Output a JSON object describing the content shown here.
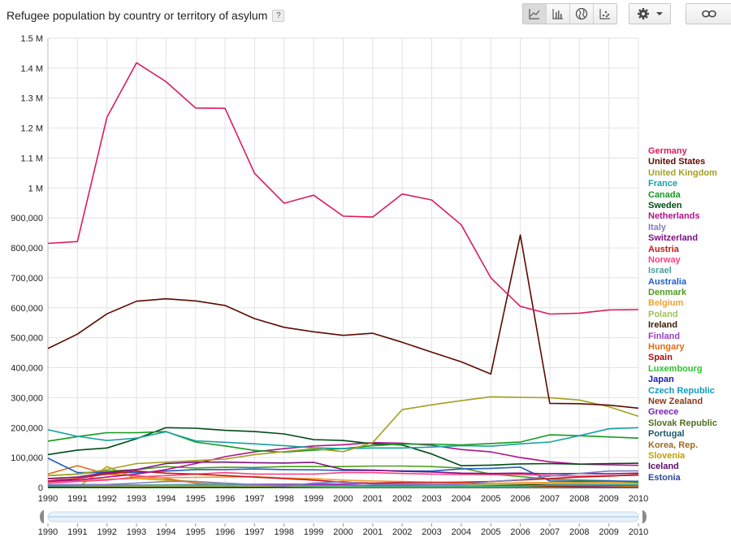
{
  "title": "Refugee population by country or territory of asylum",
  "help_label": "?",
  "toolbar": {
    "view_buttons": [
      "line-chart-icon",
      "bar-chart-icon",
      "globe-map-icon",
      "scatter-chart-icon"
    ],
    "active_view": "line-chart-icon",
    "settings_icon": "gear-icon",
    "link_icon": "link-icon"
  },
  "chart_data": {
    "type": "line",
    "title": "Refugee population by country or territory of asylum",
    "xlabel": "",
    "ylabel": "",
    "x": [
      1990,
      1991,
      1992,
      1993,
      1994,
      1995,
      1996,
      1997,
      1998,
      1999,
      2000,
      2001,
      2002,
      2003,
      2004,
      2005,
      2006,
      2007,
      2008,
      2009,
      2010
    ],
    "xlim": [
      1990,
      2010
    ],
    "ylim": [
      0,
      1500000
    ],
    "y_ticks": [
      0,
      100000,
      200000,
      300000,
      400000,
      500000,
      600000,
      700000,
      800000,
      900000,
      1000000,
      1100000,
      1200000,
      1300000,
      1400000,
      1500000
    ],
    "y_tick_labels": [
      "0",
      "100,000",
      "200,000",
      "300,000",
      "400,000",
      "500,000",
      "600,000",
      "700,000",
      "800,000",
      "900,000",
      "1 M",
      "1.1 M",
      "1.2 M",
      "1.3 M",
      "1.4 M",
      "1.5 M"
    ],
    "grid": true,
    "legend_position": "right",
    "series": [
      {
        "name": "Germany",
        "color": "#dc1b5e",
        "values": [
          815000,
          821000,
          1236000,
          1418000,
          1355000,
          1267000,
          1266000,
          1049000,
          949000,
          976000,
          906000,
          903000,
          980000,
          960000,
          877000,
          700000,
          605000,
          579000,
          582000,
          593000,
          594000
        ]
      },
      {
        "name": "United States",
        "color": "#5c0a00",
        "values": [
          464000,
          512000,
          580000,
          622000,
          630000,
          623000,
          608000,
          564000,
          535000,
          520000,
          508000,
          515000,
          485000,
          452000,
          420000,
          379000,
          843000,
          281000,
          280000,
          275000,
          265000
        ]
      },
      {
        "name": "United Kingdom",
        "color": "#a4a020",
        "values": [
          40000,
          45000,
          60000,
          80000,
          85000,
          90000,
          95000,
          110000,
          120000,
          130000,
          120000,
          150000,
          260000,
          276000,
          290000,
          303000,
          301000,
          300000,
          292000,
          270000,
          238000
        ]
      },
      {
        "name": "France",
        "color": "#17a2a2",
        "values": [
          193000,
          171000,
          157000,
          165000,
          186000,
          156000,
          151000,
          146000,
          140000,
          133000,
          130000,
          132000,
          132000,
          135000,
          140000,
          138000,
          146000,
          152000,
          173000,
          196000,
          200000
        ]
      },
      {
        "name": "Canada",
        "color": "#129a1e",
        "values": [
          155000,
          170000,
          183000,
          183000,
          187000,
          152000,
          139000,
          124000,
          118000,
          125000,
          130000,
          140000,
          145000,
          145000,
          142000,
          147000,
          152000,
          176000,
          173000,
          169000,
          165000
        ]
      },
      {
        "name": "Sweden",
        "color": "#004d16",
        "values": [
          110000,
          125000,
          132000,
          163000,
          200000,
          198000,
          191000,
          187000,
          179000,
          160000,
          157000,
          146000,
          142000,
          112000,
          73000,
          75000,
          79000,
          80000,
          78000,
          80000,
          81000
        ]
      },
      {
        "name": "Netherlands",
        "color": "#b0138a",
        "values": [
          20000,
          25000,
          35000,
          45000,
          60000,
          80000,
          103000,
          119000,
          130000,
          139000,
          143000,
          150000,
          148000,
          141000,
          127000,
          119000,
          100000,
          86000,
          78000,
          76000,
          74000
        ]
      },
      {
        "name": "Italy",
        "color": "#7e7ebf",
        "values": [
          10000,
          10000,
          10000,
          15000,
          20000,
          20000,
          15000,
          10000,
          5000,
          15000,
          20000,
          10000,
          10000,
          10000,
          10000,
          20000,
          26000,
          38000,
          47000,
          55000,
          56000
        ]
      },
      {
        "name": "Switzerland",
        "color": "#7b1180",
        "values": [
          30000,
          35000,
          50000,
          60000,
          80000,
          85000,
          85000,
          83000,
          82000,
          84000,
          60000,
          58000,
          54000,
          52000,
          48000,
          47000,
          48000,
          46000,
          47000,
          46000,
          48000
        ]
      },
      {
        "name": "Austria",
        "color": "#c81717",
        "values": [
          22000,
          30000,
          45000,
          55000,
          48000,
          45000,
          40000,
          35000,
          30000,
          25000,
          18000,
          15000,
          17000,
          17000,
          18000,
          20000,
          25000,
          30000,
          35000,
          38000,
          43000
        ]
      },
      {
        "name": "Norway",
        "color": "#ff4081",
        "values": [
          15000,
          20000,
          25000,
          35000,
          40000,
          45000,
          50000,
          45000,
          45000,
          45000,
          50000,
          50000,
          47000,
          45000,
          44000,
          43000,
          44000,
          40000,
          38000,
          40000,
          41000
        ]
      },
      {
        "name": "Israel",
        "color": "#4aa09a",
        "values": [
          5000,
          6000,
          7000,
          8000,
          9000,
          10000,
          10000,
          8000,
          7000,
          6000,
          6000,
          5000,
          5000,
          5000,
          5000,
          5000,
          5000,
          8000,
          9000,
          10000,
          10000
        ]
      },
      {
        "name": "Australia",
        "color": "#1f5fc4",
        "values": [
          98000,
          50000,
          50000,
          50000,
          55000,
          60000,
          60000,
          62000,
          60000,
          59000,
          57000,
          57000,
          56000,
          55000,
          62000,
          64000,
          68000,
          22000,
          21000,
          22000,
          21000
        ]
      },
      {
        "name": "Denmark",
        "color": "#4e9c1f",
        "values": [
          40000,
          45000,
          55000,
          60000,
          70000,
          65000,
          68000,
          67000,
          70000,
          70000,
          70000,
          72000,
          72000,
          70000,
          65000,
          45000,
          37000,
          28000,
          25000,
          23000,
          17000
        ]
      },
      {
        "name": "Belgium",
        "color": "#f0a030",
        "values": [
          30000,
          25000,
          28000,
          30000,
          33000,
          34000,
          35000,
          36000,
          32000,
          30000,
          25000,
          22000,
          20000,
          18000,
          15000,
          14000,
          16000,
          17000,
          18000,
          18000,
          17000
        ]
      },
      {
        "name": "Poland",
        "color": "#a0c060",
        "values": [
          5000,
          5000,
          5000,
          5000,
          5000,
          5000,
          5000,
          5000,
          5000,
          5000,
          5000,
          5000,
          5000,
          6000,
          8000,
          10000,
          12000,
          14000,
          16000,
          15000,
          15000
        ]
      },
      {
        "name": "Ireland",
        "color": "#3a1800",
        "values": [
          2000,
          2000,
          2000,
          2000,
          2000,
          2000,
          2000,
          2000,
          3000,
          4000,
          5000,
          6000,
          7000,
          8000,
          9000,
          9000,
          9000,
          9000,
          10000,
          10000,
          10000
        ]
      },
      {
        "name": "Finland",
        "color": "#9a40c0",
        "values": [
          3000,
          4000,
          6000,
          8000,
          9000,
          10000,
          10000,
          11000,
          11000,
          12000,
          12000,
          13000,
          12000,
          11000,
          11000,
          11000,
          11000,
          8000,
          7000,
          6000,
          9000
        ]
      },
      {
        "name": "Hungary",
        "color": "#e06a10",
        "values": [
          45000,
          73000,
          45000,
          40000,
          30000,
          15000,
          5000,
          5000,
          5000,
          5000,
          5000,
          5000,
          5000,
          5000,
          5000,
          5000,
          5000,
          8000,
          8000,
          5000,
          5000
        ]
      },
      {
        "name": "Spain",
        "color": "#a01010",
        "values": [
          5000,
          5000,
          6000,
          6000,
          6000,
          6000,
          6000,
          6000,
          6000,
          6000,
          6000,
          6000,
          6000,
          5000,
          5000,
          5000,
          5000,
          5000,
          4000,
          4000,
          4000
        ]
      },
      {
        "name": "Luxembourg",
        "color": "#30c030",
        "values": [
          500,
          500,
          500,
          500,
          500,
          500,
          500,
          500,
          1000,
          1500,
          1500,
          1500,
          1500,
          1500,
          1500,
          1500,
          2000,
          2000,
          3000,
          3000,
          3000
        ]
      },
      {
        "name": "Japan",
        "color": "#1a1ab0",
        "values": [
          6000,
          6000,
          6000,
          6000,
          6000,
          6000,
          6000,
          6000,
          5000,
          5000,
          4000,
          4000,
          3000,
          2000,
          2000,
          2000,
          2000,
          2000,
          2000,
          2000,
          2500
        ]
      },
      {
        "name": "Czech Republic",
        "color": "#109ac0",
        "values": [
          1000,
          1000,
          2000,
          2000,
          2000,
          2000,
          2000,
          2000,
          2000,
          2000,
          2000,
          2000,
          2000,
          2000,
          2000,
          2000,
          2000,
          2000,
          2000,
          2000,
          2000
        ]
      },
      {
        "name": "New Zealand",
        "color": "#8a3a1a",
        "values": [
          3000,
          3000,
          3000,
          3000,
          3000,
          3000,
          3000,
          3000,
          3000,
          3000,
          3000,
          3000,
          3000,
          3000,
          3000,
          3000,
          3000,
          3000,
          3000,
          3000,
          3000
        ]
      },
      {
        "name": "Greece",
        "color": "#7a20c0",
        "values": [
          8000,
          8000,
          8000,
          8000,
          8000,
          8000,
          8000,
          8000,
          8000,
          8000,
          8000,
          6000,
          5000,
          4000,
          3000,
          2000,
          2000,
          2000,
          2000,
          2000,
          2000
        ]
      },
      {
        "name": "Slovak Republic",
        "color": "#507020",
        "values": [
          500,
          500,
          500,
          500,
          500,
          500,
          500,
          500,
          500,
          500,
          500,
          500,
          500,
          500,
          500,
          500,
          500,
          500,
          500,
          500,
          500
        ]
      },
      {
        "name": "Portugal",
        "color": "#1a5a6a",
        "values": [
          500,
          500,
          500,
          500,
          500,
          500,
          500,
          500,
          500,
          500,
          500,
          500,
          500,
          500,
          500,
          500,
          500,
          500,
          500,
          500,
          500
        ]
      },
      {
        "name": "Korea, Rep.",
        "color": "#a06a20",
        "values": [
          0,
          0,
          0,
          0,
          0,
          0,
          0,
          0,
          0,
          0,
          0,
          0,
          0,
          0,
          0,
          0,
          0,
          0,
          500,
          1000,
          1500
        ]
      },
      {
        "name": "Slovenia",
        "color": "#c0a000",
        "values": [
          0,
          0,
          70000,
          30000,
          25000,
          20000,
          10000,
          8000,
          4000,
          3000,
          2000,
          1000,
          1000,
          500,
          500,
          500,
          500,
          500,
          500,
          500,
          500
        ]
      },
      {
        "name": "Iceland",
        "color": "#5a0a6a",
        "values": [
          0,
          0,
          0,
          0,
          0,
          0,
          0,
          0,
          0,
          0,
          0,
          0,
          0,
          0,
          0,
          0,
          0,
          0,
          0,
          0,
          0
        ]
      },
      {
        "name": "Estonia",
        "color": "#2a4a9a",
        "values": [
          0,
          0,
          0,
          0,
          0,
          0,
          0,
          0,
          0,
          0,
          0,
          0,
          0,
          0,
          0,
          0,
          0,
          0,
          0,
          0,
          0
        ]
      }
    ]
  },
  "slider": {
    "range": [
      1990,
      2010
    ],
    "tick_labels": [
      "1990",
      "1991",
      "1992",
      "1993",
      "1994",
      "1995",
      "1996",
      "1997",
      "1998",
      "1999",
      "2000",
      "2001",
      "2002",
      "2003",
      "2004",
      "2005",
      "2006",
      "2007",
      "2008",
      "2009",
      "2010"
    ]
  }
}
